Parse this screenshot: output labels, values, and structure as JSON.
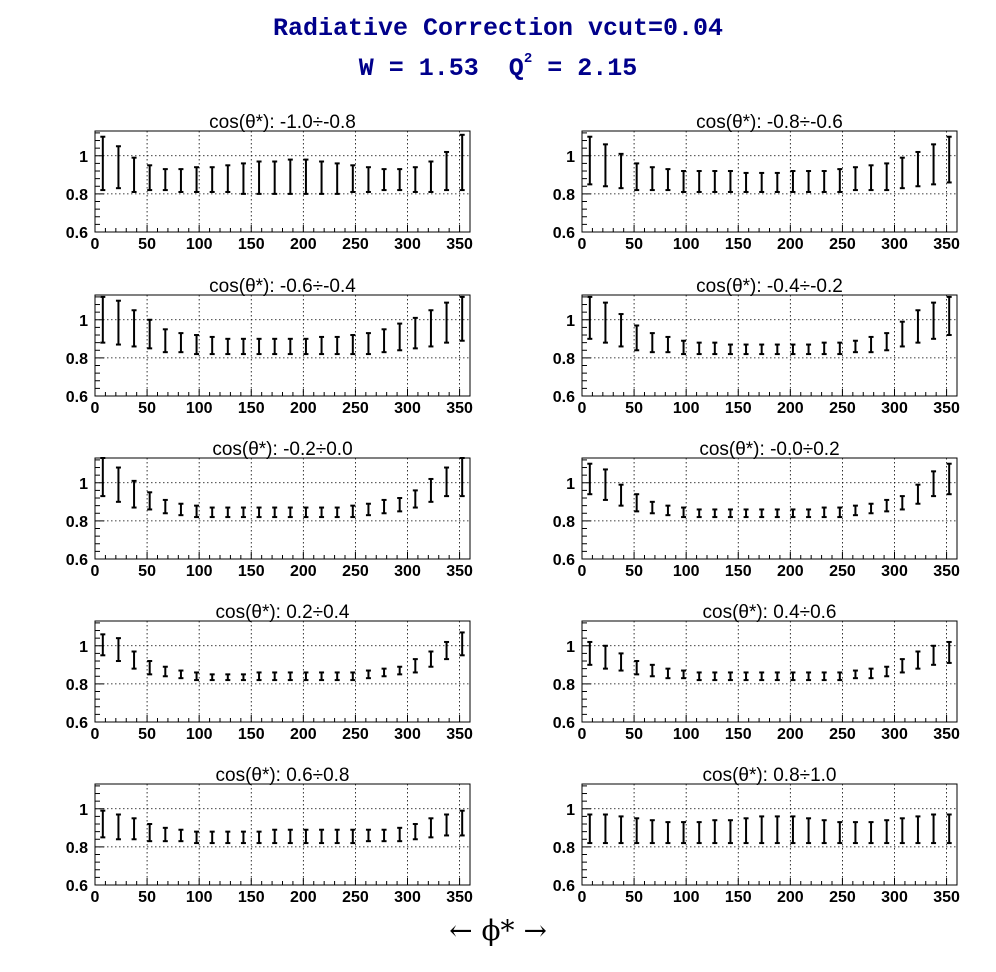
{
  "title": {
    "line1": "Radiative Correction  vcut=0.04",
    "w_label": "W = 1.53",
    "q_label": "Q",
    "q_sup": "2",
    "q_value": " = 2.15"
  },
  "xlabel": "←    ϕ*    →",
  "axes": {
    "xticks": [
      0,
      50,
      100,
      150,
      200,
      250,
      300,
      350
    ],
    "yticks": [
      0.6,
      0.8,
      1
    ],
    "xlim": [
      0,
      360
    ],
    "ylim": [
      0.6,
      1.13
    ],
    "grid": true,
    "title_color": "#00008b",
    "mark_color": "#000000"
  },
  "chart_data": [
    {
      "type": "errorbar",
      "title": "cos(θ*): -1.0÷-0.8",
      "x": [
        7.5,
        22.5,
        37.5,
        52.5,
        67.5,
        82.5,
        97.5,
        112.5,
        127.5,
        142.5,
        157.5,
        172.5,
        187.5,
        202.5,
        217.5,
        232.5,
        247.5,
        262.5,
        277.5,
        292.5,
        307.5,
        322.5,
        337.5,
        352.5
      ],
      "low": [
        0.82,
        0.83,
        0.81,
        0.82,
        0.82,
        0.81,
        0.81,
        0.81,
        0.81,
        0.8,
        0.8,
        0.8,
        0.8,
        0.8,
        0.8,
        0.8,
        0.81,
        0.81,
        0.82,
        0.82,
        0.81,
        0.81,
        0.82,
        0.82
      ],
      "high": [
        1.1,
        1.05,
        0.99,
        0.95,
        0.93,
        0.93,
        0.94,
        0.94,
        0.95,
        0.96,
        0.97,
        0.97,
        0.98,
        0.98,
        0.97,
        0.96,
        0.95,
        0.94,
        0.93,
        0.93,
        0.94,
        0.97,
        1.02,
        1.11
      ]
    },
    {
      "type": "errorbar",
      "title": "cos(θ*): -0.8÷-0.6",
      "x": [
        7.5,
        22.5,
        37.5,
        52.5,
        67.5,
        82.5,
        97.5,
        112.5,
        127.5,
        142.5,
        157.5,
        172.5,
        187.5,
        202.5,
        217.5,
        232.5,
        247.5,
        262.5,
        277.5,
        292.5,
        307.5,
        322.5,
        337.5,
        352.5
      ],
      "low": [
        0.85,
        0.84,
        0.83,
        0.82,
        0.82,
        0.82,
        0.81,
        0.81,
        0.81,
        0.81,
        0.81,
        0.81,
        0.81,
        0.81,
        0.81,
        0.81,
        0.81,
        0.82,
        0.82,
        0.82,
        0.83,
        0.84,
        0.85,
        0.86
      ],
      "high": [
        1.1,
        1.06,
        1.01,
        0.96,
        0.94,
        0.93,
        0.92,
        0.92,
        0.92,
        0.92,
        0.91,
        0.91,
        0.91,
        0.92,
        0.92,
        0.92,
        0.93,
        0.94,
        0.95,
        0.96,
        0.99,
        1.02,
        1.06,
        1.1
      ]
    },
    {
      "type": "errorbar",
      "title": "cos(θ*): -0.6÷-0.4",
      "x": [
        7.5,
        22.5,
        37.5,
        52.5,
        67.5,
        82.5,
        97.5,
        112.5,
        127.5,
        142.5,
        157.5,
        172.5,
        187.5,
        202.5,
        217.5,
        232.5,
        247.5,
        262.5,
        277.5,
        292.5,
        307.5,
        322.5,
        337.5,
        352.5
      ],
      "low": [
        0.88,
        0.87,
        0.86,
        0.85,
        0.83,
        0.83,
        0.82,
        0.82,
        0.82,
        0.82,
        0.82,
        0.82,
        0.82,
        0.82,
        0.82,
        0.82,
        0.82,
        0.82,
        0.83,
        0.84,
        0.85,
        0.86,
        0.88,
        0.89
      ],
      "high": [
        1.12,
        1.1,
        1.05,
        1.0,
        0.95,
        0.93,
        0.92,
        0.91,
        0.9,
        0.9,
        0.9,
        0.9,
        0.9,
        0.9,
        0.91,
        0.91,
        0.92,
        0.93,
        0.95,
        0.98,
        1.01,
        1.05,
        1.09,
        1.12
      ]
    },
    {
      "type": "errorbar",
      "title": "cos(θ*): -0.4÷-0.2",
      "x": [
        7.5,
        22.5,
        37.5,
        52.5,
        67.5,
        82.5,
        97.5,
        112.5,
        127.5,
        142.5,
        157.5,
        172.5,
        187.5,
        202.5,
        217.5,
        232.5,
        247.5,
        262.5,
        277.5,
        292.5,
        307.5,
        322.5,
        337.5,
        352.5
      ],
      "low": [
        0.9,
        0.88,
        0.86,
        0.84,
        0.83,
        0.83,
        0.82,
        0.82,
        0.82,
        0.82,
        0.82,
        0.82,
        0.82,
        0.82,
        0.82,
        0.82,
        0.82,
        0.83,
        0.83,
        0.84,
        0.86,
        0.88,
        0.9,
        0.92
      ],
      "high": [
        1.12,
        1.09,
        1.03,
        0.97,
        0.93,
        0.91,
        0.89,
        0.88,
        0.88,
        0.87,
        0.87,
        0.87,
        0.87,
        0.87,
        0.87,
        0.88,
        0.88,
        0.89,
        0.91,
        0.93,
        0.99,
        1.05,
        1.09,
        1.12
      ]
    },
    {
      "type": "errorbar",
      "title": "cos(θ*): -0.2÷0.0",
      "x": [
        7.5,
        22.5,
        37.5,
        52.5,
        67.5,
        82.5,
        97.5,
        112.5,
        127.5,
        142.5,
        157.5,
        172.5,
        187.5,
        202.5,
        217.5,
        232.5,
        247.5,
        262.5,
        277.5,
        292.5,
        307.5,
        322.5,
        337.5,
        352.5
      ],
      "low": [
        0.93,
        0.9,
        0.87,
        0.86,
        0.84,
        0.83,
        0.82,
        0.82,
        0.82,
        0.82,
        0.82,
        0.82,
        0.82,
        0.82,
        0.82,
        0.82,
        0.82,
        0.83,
        0.84,
        0.85,
        0.87,
        0.9,
        0.93,
        0.93
      ],
      "high": [
        1.13,
        1.08,
        1.01,
        0.95,
        0.91,
        0.89,
        0.88,
        0.87,
        0.87,
        0.87,
        0.87,
        0.87,
        0.87,
        0.87,
        0.87,
        0.87,
        0.88,
        0.89,
        0.91,
        0.92,
        0.96,
        1.02,
        1.08,
        1.13
      ]
    },
    {
      "type": "errorbar",
      "title": "cos(θ*): -0.0÷0.2",
      "x": [
        7.5,
        22.5,
        37.5,
        52.5,
        67.5,
        82.5,
        97.5,
        112.5,
        127.5,
        142.5,
        157.5,
        172.5,
        187.5,
        202.5,
        217.5,
        232.5,
        247.5,
        262.5,
        277.5,
        292.5,
        307.5,
        322.5,
        337.5,
        352.5
      ],
      "low": [
        0.94,
        0.91,
        0.88,
        0.85,
        0.84,
        0.83,
        0.82,
        0.82,
        0.82,
        0.82,
        0.82,
        0.82,
        0.82,
        0.82,
        0.82,
        0.82,
        0.82,
        0.83,
        0.84,
        0.85,
        0.86,
        0.89,
        0.93,
        0.94
      ],
      "high": [
        1.1,
        1.07,
        0.99,
        0.94,
        0.9,
        0.88,
        0.87,
        0.86,
        0.86,
        0.86,
        0.86,
        0.86,
        0.86,
        0.86,
        0.86,
        0.87,
        0.87,
        0.88,
        0.89,
        0.91,
        0.93,
        0.99,
        1.06,
        1.1
      ]
    },
    {
      "type": "errorbar",
      "title": "cos(θ*): 0.2÷0.4",
      "x": [
        7.5,
        22.5,
        37.5,
        52.5,
        67.5,
        82.5,
        97.5,
        112.5,
        127.5,
        142.5,
        157.5,
        172.5,
        187.5,
        202.5,
        217.5,
        232.5,
        247.5,
        262.5,
        277.5,
        292.5,
        307.5,
        322.5,
        337.5,
        352.5
      ],
      "low": [
        0.95,
        0.92,
        0.88,
        0.85,
        0.84,
        0.83,
        0.82,
        0.82,
        0.82,
        0.82,
        0.82,
        0.82,
        0.82,
        0.82,
        0.82,
        0.82,
        0.82,
        0.83,
        0.84,
        0.85,
        0.86,
        0.89,
        0.93,
        0.95
      ],
      "high": [
        1.06,
        1.04,
        0.97,
        0.92,
        0.89,
        0.87,
        0.86,
        0.85,
        0.85,
        0.85,
        0.86,
        0.86,
        0.86,
        0.86,
        0.86,
        0.86,
        0.86,
        0.87,
        0.88,
        0.89,
        0.93,
        0.97,
        1.02,
        1.07
      ]
    },
    {
      "type": "errorbar",
      "title": "cos(θ*): 0.4÷0.6",
      "x": [
        7.5,
        22.5,
        37.5,
        52.5,
        67.5,
        82.5,
        97.5,
        112.5,
        127.5,
        142.5,
        157.5,
        172.5,
        187.5,
        202.5,
        217.5,
        232.5,
        247.5,
        262.5,
        277.5,
        292.5,
        307.5,
        322.5,
        337.5,
        352.5
      ],
      "low": [
        0.9,
        0.88,
        0.87,
        0.85,
        0.84,
        0.83,
        0.83,
        0.82,
        0.82,
        0.82,
        0.82,
        0.82,
        0.82,
        0.82,
        0.82,
        0.82,
        0.82,
        0.83,
        0.83,
        0.84,
        0.86,
        0.88,
        0.9,
        0.91
      ],
      "high": [
        1.02,
        1.0,
        0.96,
        0.92,
        0.9,
        0.88,
        0.87,
        0.86,
        0.86,
        0.86,
        0.86,
        0.86,
        0.86,
        0.86,
        0.86,
        0.86,
        0.86,
        0.87,
        0.88,
        0.89,
        0.93,
        0.97,
        1.0,
        1.02
      ]
    },
    {
      "type": "errorbar",
      "title": "cos(θ*): 0.6÷0.8",
      "x": [
        7.5,
        22.5,
        37.5,
        52.5,
        67.5,
        82.5,
        97.5,
        112.5,
        127.5,
        142.5,
        157.5,
        172.5,
        187.5,
        202.5,
        217.5,
        232.5,
        247.5,
        262.5,
        277.5,
        292.5,
        307.5,
        322.5,
        337.5,
        352.5
      ],
      "low": [
        0.85,
        0.84,
        0.84,
        0.83,
        0.83,
        0.83,
        0.82,
        0.82,
        0.82,
        0.82,
        0.82,
        0.82,
        0.82,
        0.82,
        0.82,
        0.82,
        0.82,
        0.83,
        0.83,
        0.83,
        0.84,
        0.85,
        0.86,
        0.86
      ],
      "high": [
        0.99,
        0.97,
        0.95,
        0.92,
        0.9,
        0.89,
        0.88,
        0.88,
        0.88,
        0.88,
        0.88,
        0.89,
        0.89,
        0.89,
        0.89,
        0.89,
        0.89,
        0.89,
        0.89,
        0.9,
        0.92,
        0.95,
        0.97,
        0.99
      ]
    },
    {
      "type": "errorbar",
      "title": "cos(θ*): 0.8÷1.0",
      "x": [
        7.5,
        22.5,
        37.5,
        52.5,
        67.5,
        82.5,
        97.5,
        112.5,
        127.5,
        142.5,
        157.5,
        172.5,
        187.5,
        202.5,
        217.5,
        232.5,
        247.5,
        262.5,
        277.5,
        292.5,
        307.5,
        322.5,
        337.5,
        352.5
      ],
      "low": [
        0.82,
        0.82,
        0.82,
        0.82,
        0.82,
        0.82,
        0.82,
        0.82,
        0.82,
        0.82,
        0.82,
        0.82,
        0.82,
        0.82,
        0.82,
        0.82,
        0.82,
        0.82,
        0.82,
        0.82,
        0.82,
        0.82,
        0.82,
        0.82
      ],
      "high": [
        0.97,
        0.97,
        0.96,
        0.95,
        0.94,
        0.93,
        0.93,
        0.93,
        0.94,
        0.94,
        0.95,
        0.96,
        0.96,
        0.96,
        0.95,
        0.94,
        0.93,
        0.93,
        0.93,
        0.94,
        0.95,
        0.96,
        0.97,
        0.97
      ]
    }
  ]
}
